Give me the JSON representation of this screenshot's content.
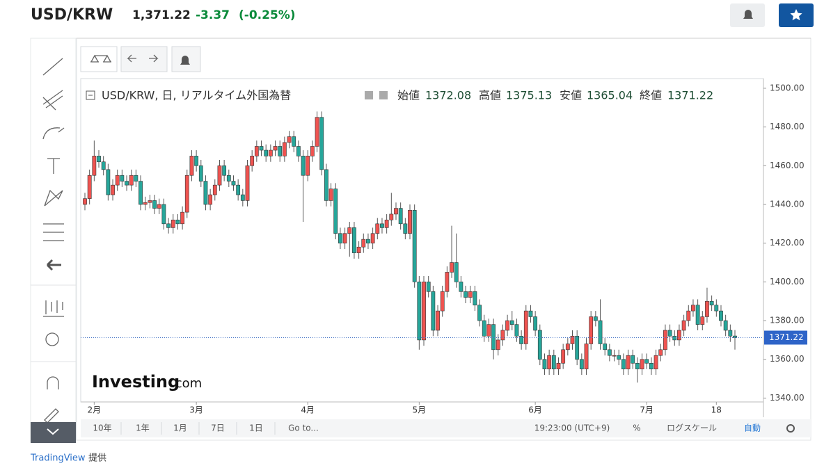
{
  "header": {
    "symbol": "USD/KRW",
    "price": "1,371.22",
    "change": "-3.37",
    "change_pct": "(-0.25%)"
  },
  "legend": {
    "title": "USD/KRW, 日, リアルタイム外国為替",
    "open_label": "始値",
    "open": "1372.08",
    "high_label": "高値",
    "high": "1375.13",
    "low_label": "安値",
    "low": "1365.04",
    "close_label": "終値",
    "close": "1371.22"
  },
  "watermark": {
    "brand": "Investing",
    "suffix": ".com"
  },
  "bottom_bar": {
    "ranges": [
      "10年",
      "1年",
      "1月",
      "7日",
      "1日"
    ],
    "goto": "Go to...",
    "time": "19:23:00 (UTC+9)",
    "percent": "%",
    "log": "ログスケール",
    "auto": "自動"
  },
  "footer": {
    "link": "TradingView",
    "suffix": "提供"
  },
  "chart_data": {
    "type": "candlestick",
    "up_color": "#ef5350",
    "down_color": "#26a69a",
    "grid": false,
    "categories": [
      null,
      null,
      "2月",
      null,
      null,
      null,
      null,
      null,
      null,
      null,
      null,
      null,
      null,
      null,
      null,
      null,
      null,
      null,
      null,
      null,
      null,
      null,
      null,
      null,
      "3月",
      null,
      null,
      null,
      null,
      null,
      null,
      null,
      null,
      null,
      null,
      null,
      null,
      null,
      null,
      null,
      null,
      null,
      null,
      null,
      null,
      null,
      null,
      null,
      "4月",
      null,
      null,
      null,
      null,
      null,
      null,
      null,
      null,
      null,
      null,
      null,
      null,
      null,
      null,
      null,
      null,
      null,
      null,
      null,
      null,
      null,
      null,
      null,
      "5月",
      null,
      null,
      null,
      null,
      null,
      null,
      null,
      null,
      null,
      null,
      null,
      null,
      null,
      null,
      null,
      null,
      null,
      null,
      null,
      null,
      null,
      null,
      null,
      null,
      "6月",
      null,
      null,
      null,
      null,
      null,
      null,
      null,
      null,
      null,
      null,
      null,
      null,
      null,
      null,
      null,
      null,
      null,
      null,
      null,
      null,
      null,
      null,
      null,
      "7月",
      null,
      null,
      null,
      null,
      null,
      null,
      null,
      null,
      null,
      null,
      null,
      null,
      null,
      null,
      "18",
      null,
      null,
      null,
      null
    ],
    "open": [
      1440,
      1443,
      1455,
      1465,
      1462,
      1458,
      1445,
      1450,
      1455,
      1452,
      1450,
      1455,
      1452,
      1440,
      1441,
      1442,
      1438,
      1440,
      1430,
      1428,
      1432,
      1430,
      1436,
      1455,
      1465,
      1460,
      1452,
      1440,
      1445,
      1450,
      1460,
      1455,
      1452,
      1450,
      1445,
      1442,
      1460,
      1465,
      1470,
      1468,
      1465,
      1468,
      1470,
      1465,
      1472,
      1475,
      1470,
      1465,
      1455,
      1465,
      1470,
      1485,
      1458,
      1442,
      1448,
      1425,
      1420,
      1425,
      1428,
      1415,
      1418,
      1422,
      1420,
      1425,
      1430,
      1428,
      1432,
      1435,
      1438,
      1430,
      1425,
      1437,
      1400,
      1370,
      1400,
      1395,
      1375,
      1385,
      1395,
      1405,
      1410,
      1400,
      1395,
      1392,
      1395,
      1388,
      1380,
      1372,
      1378,
      1365,
      1370,
      1375,
      1380,
      1378,
      1372,
      1368,
      1385,
      1382,
      1375,
      1360,
      1355,
      1362,
      1355,
      1358,
      1365,
      1368,
      1372,
      1360,
      1355,
      1368,
      1382,
      1380,
      1368,
      1365,
      1362,
      1362,
      1360,
      1355,
      1362,
      1358,
      1355,
      1360,
      1358,
      1355,
      1362,
      1365,
      1375,
      1372,
      1370,
      1375,
      1380,
      1385,
      1388,
      1378,
      1382,
      1390,
      1388,
      1385,
      1380,
      1375,
      1372.08
    ],
    "high": [
      1446,
      1458,
      1473,
      1468,
      1465,
      1461,
      1453,
      1458,
      1458,
      1455,
      1458,
      1458,
      1455,
      1444,
      1445,
      1445,
      1443,
      1443,
      1433,
      1435,
      1435,
      1439,
      1458,
      1468,
      1468,
      1463,
      1455,
      1448,
      1453,
      1463,
      1463,
      1458,
      1455,
      1453,
      1448,
      1463,
      1468,
      1473,
      1473,
      1471,
      1471,
      1473,
      1473,
      1475,
      1478,
      1478,
      1473,
      1468,
      1468,
      1473,
      1488,
      1488,
      1461,
      1451,
      1451,
      1428,
      1428,
      1431,
      1431,
      1421,
      1425,
      1425,
      1428,
      1433,
      1433,
      1435,
      1446,
      1441,
      1441,
      1433,
      1440,
      1440,
      1403,
      1403,
      1403,
      1398,
      1388,
      1398,
      1408,
      1429,
      1425,
      1403,
      1398,
      1398,
      1398,
      1391,
      1383,
      1381,
      1381,
      1373,
      1378,
      1383,
      1385,
      1381,
      1375,
      1388,
      1388,
      1385,
      1378,
      1363,
      1365,
      1365,
      1361,
      1368,
      1371,
      1375,
      1375,
      1363,
      1371,
      1385,
      1385,
      1391,
      1371,
      1368,
      1365,
      1365,
      1363,
      1365,
      1365,
      1361,
      1363,
      1363,
      1361,
      1365,
      1368,
      1378,
      1378,
      1375,
      1378,
      1383,
      1388,
      1391,
      1391,
      1385,
      1397,
      1393,
      1391,
      1388,
      1383,
      1378,
      1375.13
    ],
    "low": [
      1437,
      1440,
      1452,
      1459,
      1455,
      1442,
      1442,
      1447,
      1449,
      1447,
      1447,
      1449,
      1437,
      1437,
      1438,
      1435,
      1435,
      1427,
      1425,
      1425,
      1427,
      1427,
      1433,
      1452,
      1457,
      1449,
      1437,
      1437,
      1442,
      1447,
      1452,
      1449,
      1447,
      1442,
      1439,
      1439,
      1457,
      1462,
      1465,
      1462,
      1462,
      1465,
      1462,
      1462,
      1469,
      1467,
      1462,
      1431,
      1452,
      1462,
      1467,
      1455,
      1439,
      1439,
      1422,
      1417,
      1417,
      1413,
      1412,
      1412,
      1415,
      1417,
      1417,
      1422,
      1425,
      1425,
      1429,
      1432,
      1427,
      1422,
      1422,
      1397,
      1365,
      1367,
      1392,
      1372,
      1372,
      1382,
      1392,
      1402,
      1397,
      1392,
      1389,
      1389,
      1385,
      1377,
      1369,
      1369,
      1360,
      1362,
      1367,
      1372,
      1375,
      1369,
      1365,
      1365,
      1379,
      1372,
      1357,
      1352,
      1352,
      1352,
      1352,
      1355,
      1362,
      1365,
      1357,
      1352,
      1352,
      1365,
      1377,
      1365,
      1362,
      1359,
      1359,
      1357,
      1352,
      1352,
      1355,
      1348,
      1352,
      1355,
      1352,
      1352,
      1359,
      1362,
      1369,
      1367,
      1367,
      1372,
      1377,
      1382,
      1375,
      1375,
      1379,
      1385,
      1382,
      1377,
      1372,
      1369,
      1365.04
    ],
    "close": [
      1443,
      1455,
      1465,
      1462,
      1458,
      1445,
      1450,
      1455,
      1452,
      1450,
      1455,
      1452,
      1440,
      1441,
      1442,
      1438,
      1440,
      1430,
      1428,
      1432,
      1430,
      1436,
      1455,
      1465,
      1460,
      1452,
      1440,
      1445,
      1450,
      1460,
      1455,
      1452,
      1450,
      1445,
      1442,
      1460,
      1465,
      1470,
      1468,
      1465,
      1468,
      1470,
      1465,
      1472,
      1475,
      1470,
      1465,
      1455,
      1465,
      1470,
      1485,
      1458,
      1442,
      1448,
      1425,
      1420,
      1425,
      1428,
      1415,
      1418,
      1422,
      1420,
      1425,
      1430,
      1428,
      1432,
      1435,
      1438,
      1430,
      1425,
      1437,
      1400,
      1370,
      1400,
      1395,
      1375,
      1385,
      1395,
      1405,
      1410,
      1400,
      1395,
      1392,
      1395,
      1388,
      1380,
      1372,
      1378,
      1365,
      1370,
      1375,
      1380,
      1378,
      1372,
      1368,
      1385,
      1382,
      1375,
      1360,
      1355,
      1362,
      1355,
      1358,
      1365,
      1368,
      1372,
      1360,
      1355,
      1368,
      1382,
      1380,
      1368,
      1365,
      1362,
      1362,
      1360,
      1355,
      1362,
      1358,
      1355,
      1360,
      1358,
      1355,
      1362,
      1365,
      1375,
      1372,
      1370,
      1375,
      1380,
      1385,
      1388,
      1378,
      1382,
      1390,
      1388,
      1385,
      1380,
      1375,
      1372,
      1371.22
    ],
    "last_label": "1371.22",
    "ylim": [
      1338,
      1505
    ],
    "yticks": [
      {
        "value": 1340,
        "label": "1340.00"
      },
      {
        "value": 1360,
        "label": "1360.00"
      },
      {
        "value": 1380,
        "label": "1380.00"
      },
      {
        "value": 1400,
        "label": "1400.00"
      },
      {
        "value": 1420,
        "label": "1420.00"
      },
      {
        "value": 1440,
        "label": "1440.00"
      },
      {
        "value": 1460,
        "label": "1460.00"
      },
      {
        "value": 1480,
        "label": "1480.00"
      },
      {
        "value": 1500,
        "label": "1500.00"
      }
    ]
  }
}
